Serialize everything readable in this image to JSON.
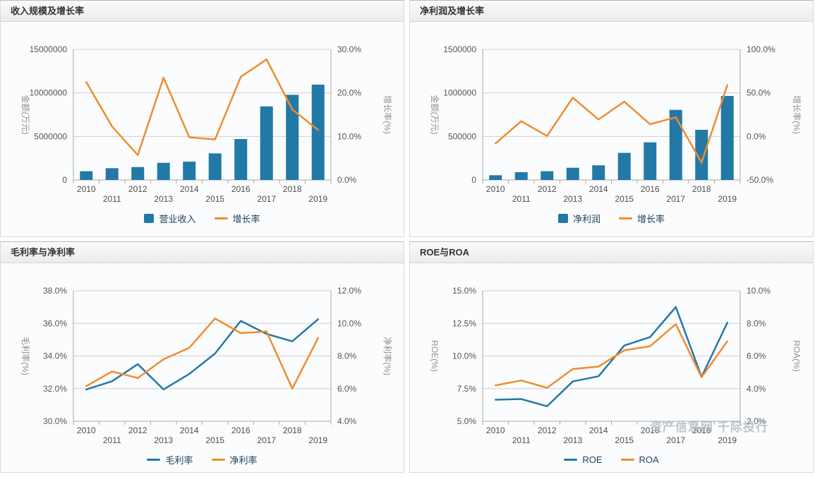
{
  "watermark": "资产信息网 千际投行",
  "colors": {
    "bar_blue": "#2279a5",
    "line_orange": "#f08c2e",
    "line_blue": "#2279a5",
    "grid": "#cfcfcf",
    "axis": "#a8a8a8",
    "tick_text": "#555555",
    "year_text": "#4d4d4d",
    "axis_title_text": "#909090"
  },
  "chart_data": [
    {
      "type": "bar-line",
      "title": "收入规模及增长率",
      "categories": [
        "2010",
        "2011",
        "2012",
        "2013",
        "2014",
        "2015",
        "2016",
        "2017",
        "2018",
        "2019"
      ],
      "left_axis": {
        "title": "金额(万元)",
        "min": 0,
        "max": 15000000,
        "ticks": [
          {
            "v": 0,
            "label": "0"
          },
          {
            "v": 5000000,
            "label": "5000000"
          },
          {
            "v": 10000000,
            "label": "10000000"
          },
          {
            "v": 15000000,
            "label": "15000000"
          }
        ]
      },
      "right_axis": {
        "title": "增长率(%)",
        "min": 0,
        "max": 30,
        "ticks": [
          {
            "v": 0,
            "label": "0.0%"
          },
          {
            "v": 10,
            "label": "10.0%"
          },
          {
            "v": 20,
            "label": "20.0%"
          },
          {
            "v": 30,
            "label": "30.0%"
          }
        ]
      },
      "series": [
        {
          "name": "营业收入",
          "type": "bar",
          "axis": "left",
          "color": "#2279a5",
          "values": [
            1000000,
            1350000,
            1480000,
            1970000,
            2100000,
            3050000,
            4700000,
            8450000,
            9780000,
            10950000
          ]
        },
        {
          "name": "增长率",
          "type": "line",
          "axis": "right",
          "color": "#f08c2e",
          "values": [
            22.5,
            12.3,
            5.7,
            23.5,
            9.8,
            9.3,
            23.7,
            27.7,
            16.2,
            11.5
          ]
        }
      ]
    },
    {
      "type": "bar-line",
      "title": "净利润及增长率",
      "categories": [
        "2010",
        "2011",
        "2012",
        "2013",
        "2014",
        "2015",
        "2016",
        "2017",
        "2018",
        "2019"
      ],
      "left_axis": {
        "title": "金额(万元)",
        "min": 0,
        "max": 1500000,
        "ticks": [
          {
            "v": 0,
            "label": "0"
          },
          {
            "v": 500000,
            "label": "500000"
          },
          {
            "v": 1000000,
            "label": "1000000"
          },
          {
            "v": 1500000,
            "label": "1500000"
          }
        ]
      },
      "right_axis": {
        "title": "增长率(%)",
        "min": -50,
        "max": 100,
        "ticks": [
          {
            "v": -50,
            "label": "-50.0%"
          },
          {
            "v": 0,
            "label": "0.0%"
          },
          {
            "v": 50,
            "label": "50.0%"
          },
          {
            "v": 100,
            "label": "100.0%"
          }
        ]
      },
      "series": [
        {
          "name": "净利润",
          "type": "bar",
          "axis": "left",
          "color": "#2279a5",
          "values": [
            54000,
            89000,
            100000,
            140000,
            168000,
            311000,
            432000,
            805000,
            576000,
            965000
          ]
        },
        {
          "name": "增长率",
          "type": "line",
          "axis": "right",
          "color": "#f08c2e",
          "values": [
            -8,
            17.5,
            0.5,
            44.5,
            19.5,
            40,
            14,
            22,
            -30,
            59
          ]
        }
      ]
    },
    {
      "type": "line",
      "title": "毛利率与净利率",
      "categories": [
        "2010",
        "2011",
        "2012",
        "2013",
        "2014",
        "2015",
        "2016",
        "2017",
        "2018",
        "2019"
      ],
      "left_axis": {
        "title": "毛利率(%)",
        "min": 30,
        "max": 38,
        "ticks": [
          {
            "v": 30,
            "label": "30.0%"
          },
          {
            "v": 32,
            "label": "32.0%"
          },
          {
            "v": 34,
            "label": "34.0%"
          },
          {
            "v": 36,
            "label": "36.0%"
          },
          {
            "v": 38,
            "label": "38.0%"
          }
        ]
      },
      "right_axis": {
        "title": "净利率(%)",
        "min": 4,
        "max": 12,
        "ticks": [
          {
            "v": 4,
            "label": "4.0%"
          },
          {
            "v": 6,
            "label": "6.0%"
          },
          {
            "v": 8,
            "label": "8.0%"
          },
          {
            "v": 10,
            "label": "10.0%"
          },
          {
            "v": 12,
            "label": "12.0%"
          }
        ]
      },
      "series": [
        {
          "name": "毛利率",
          "type": "line",
          "axis": "left",
          "color": "#2279a5",
          "values": [
            31.95,
            32.45,
            33.5,
            31.95,
            32.9,
            34.15,
            36.15,
            35.35,
            34.9,
            36.25
          ]
        },
        {
          "name": "净利率",
          "type": "line",
          "axis": "right",
          "color": "#f08c2e",
          "values": [
            6.15,
            7.05,
            6.65,
            7.8,
            8.5,
            10.3,
            9.4,
            9.5,
            6.0,
            9.1
          ]
        }
      ]
    },
    {
      "type": "line",
      "title": "ROE与ROA",
      "categories": [
        "2010",
        "2011",
        "2012",
        "2013",
        "2014",
        "2015",
        "2016",
        "2017",
        "2018",
        "2019"
      ],
      "left_axis": {
        "title": "ROE(%)",
        "min": 5,
        "max": 15,
        "ticks": [
          {
            "v": 5,
            "label": "5.0%"
          },
          {
            "v": 7.5,
            "label": "7.5%"
          },
          {
            "v": 10,
            "label": "10.0%"
          },
          {
            "v": 12.5,
            "label": "12.5%"
          },
          {
            "v": 15,
            "label": "15.0%"
          }
        ]
      },
      "right_axis": {
        "title": "ROA(%)",
        "min": 2,
        "max": 10,
        "ticks": [
          {
            "v": 2,
            "label": "2.0%"
          },
          {
            "v": 4,
            "label": "4.0%"
          },
          {
            "v": 6,
            "label": "6.0%"
          },
          {
            "v": 8,
            "label": "8.0%"
          },
          {
            "v": 10,
            "label": "10.0%"
          }
        ]
      },
      "series": [
        {
          "name": "ROE",
          "type": "line",
          "axis": "left",
          "color": "#2279a5",
          "values": [
            6.65,
            6.7,
            6.15,
            8.05,
            8.45,
            10.8,
            11.45,
            13.75,
            8.4,
            12.55
          ]
        },
        {
          "name": "ROA",
          "type": "line",
          "axis": "right",
          "color": "#f08c2e",
          "values": [
            4.2,
            4.5,
            4.05,
            5.2,
            5.35,
            6.35,
            6.6,
            7.95,
            4.7,
            6.9
          ]
        }
      ]
    }
  ]
}
